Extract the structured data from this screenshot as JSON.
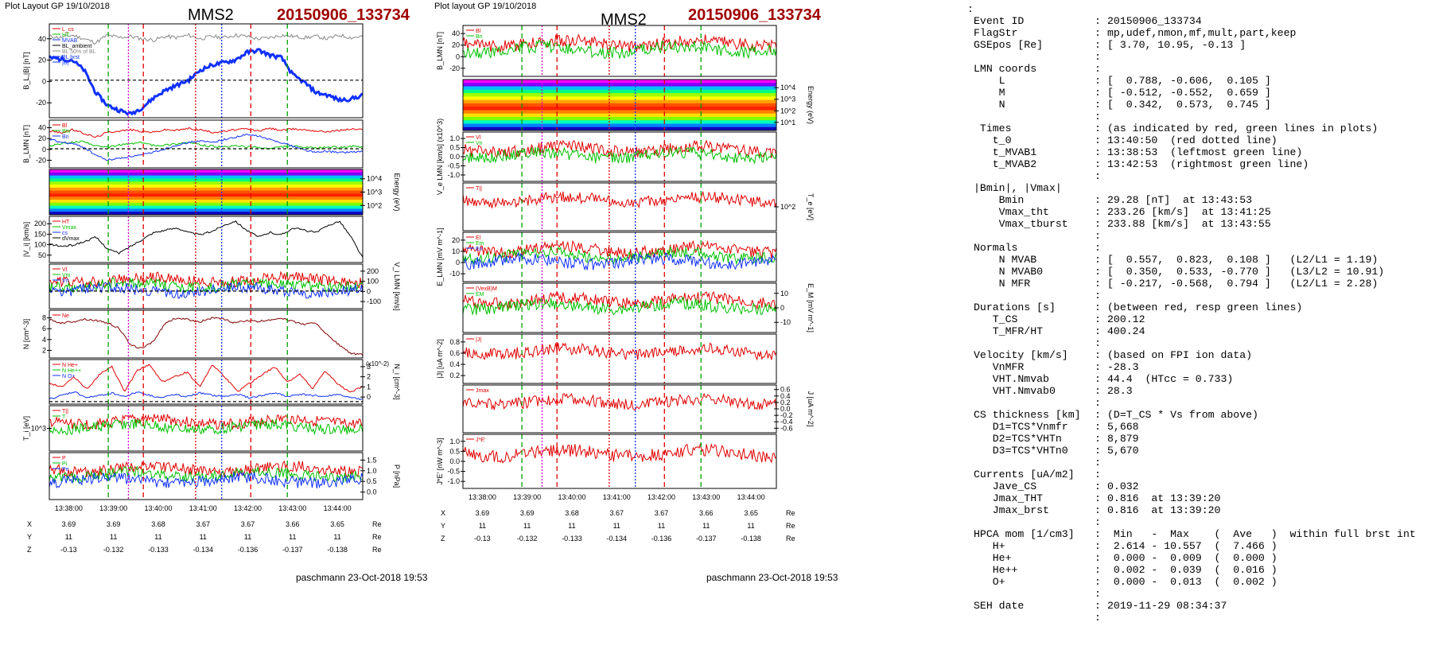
{
  "left_panel": {
    "header": "Plot Layout GP 19/10/2018",
    "spacecraft": "MMS2",
    "event": "20150906_133734",
    "footer": "paschmann 23-Oct-2018 19:53",
    "time_ticks": [
      "13:38:00",
      "13:39:00",
      "13:40:00",
      "13:41:00",
      "13:42:00",
      "13:43:00",
      "13:44:00"
    ],
    "position_rows": [
      {
        "label": "X",
        "values": [
          "3.69",
          "3.69",
          "3.68",
          "3.67",
          "3.67",
          "3.66",
          "3.65"
        ],
        "unit": "Re"
      },
      {
        "label": "Y",
        "values": [
          "11",
          "11",
          "11",
          "11",
          "11",
          "11",
          "11"
        ],
        "unit": "Re"
      },
      {
        "label": "Z",
        "values": [
          "-0.13",
          "-0.132",
          "-0.133",
          "-0.134",
          "-0.136",
          "-0.137",
          "-0.138"
        ],
        "unit": "Re"
      }
    ]
  },
  "right_panel": {
    "header": "Plot layout GP 19/10/2018",
    "spacecraft": "MMS2",
    "event": "20150906_133734",
    "footer": "paschmann 23-Oct-2018 19:53",
    "time_ticks": [
      "13:38:00",
      "13:39:00",
      "13:40:00",
      "13:41:00",
      "13:42:00",
      "13:43:00",
      "13:44:00"
    ],
    "position_rows": [
      {
        "label": "X",
        "values": [
          "3.69",
          "3.69",
          "3.68",
          "3.67",
          "3.67",
          "3.66",
          "3.65"
        ],
        "unit": "Re"
      },
      {
        "label": "Y",
        "values": [
          "11",
          "11",
          "11",
          "11",
          "11",
          "11",
          "11"
        ],
        "unit": "Re"
      },
      {
        "label": "Z",
        "values": [
          "-0.13",
          "-0.132",
          "-0.133",
          "-0.134",
          "-0.136",
          "-0.137",
          "-0.138"
        ],
        "unit": "Re"
      }
    ]
  },
  "info_lines": [
    [
      ":",
      "",
      ""
    ],
    [
      "Event ID",
      ":",
      "20150906_133734"
    ],
    [
      "FlagStr",
      ":",
      "mp,udef,nmon,mf,mult,part,keep"
    ],
    [
      "GSEpos [Re]",
      ":",
      "[ 3.70, 10.95, -0.13 ]"
    ],
    [
      "",
      ":",
      ""
    ],
    [
      "LMN coords",
      ":",
      ""
    ],
    [
      "    L",
      ":",
      "[  0.788, -0.606,  0.105 ]"
    ],
    [
      "    M",
      ":",
      "[ -0.512, -0.552,  0.659 ]"
    ],
    [
      "    N",
      ":",
      "[  0.342,  0.573,  0.745 ]"
    ],
    [
      "",
      ":",
      ""
    ],
    [
      " Times",
      ":",
      "(as indicated by red, green lines in plots)"
    ],
    [
      "   t_0",
      ":",
      "13:40:50  (red dotted line)"
    ],
    [
      "   t_MVAB1",
      ":",
      "13:38:53  (leftmost green line)"
    ],
    [
      "   t_MVAB2",
      ":",
      "13:42:53  (rightmost green line)"
    ],
    [
      "",
      ":",
      ""
    ],
    [
      "|Bmin|, |Vmax|",
      "",
      ""
    ],
    [
      "    Bmin",
      ":",
      "29.28 [nT]  at 13:43:53"
    ],
    [
      "    Vmax_tht",
      ":",
      "233.26 [km/s]  at 13:41:25"
    ],
    [
      "    Vmax_tburst",
      ":",
      "233.88 [km/s]  at 13:43:55"
    ],
    [
      "",
      ":",
      ""
    ],
    [
      "Normals",
      ":",
      ""
    ],
    [
      "    N MVAB",
      ":",
      "[  0.557,  0.823,  0.108 ]   (L2/L1 = 1.19)"
    ],
    [
      "    N MVAB0",
      ":",
      "[  0.350,  0.533, -0.770 ]   (L3/L2 = 10.91)"
    ],
    [
      "    N MFR",
      ":",
      "[ -0.217, -0.568,  0.794 ]   (L2/L1 = 2.28)"
    ],
    [
      "",
      ":",
      ""
    ],
    [
      "Durations [s]",
      ":",
      "(between red, resp green lines)"
    ],
    [
      "   T_CS",
      ":",
      "200.12"
    ],
    [
      "   T_MFR/HT",
      ":",
      "400.24"
    ],
    [
      "",
      ":",
      ""
    ],
    [
      "Velocity [km/s]",
      ":",
      "(based on FPI ion data)"
    ],
    [
      "   VnMFR",
      ":",
      "-28.3"
    ],
    [
      "   VHT.Nmvab",
      ":",
      "44.4  (HTcc = 0.733)"
    ],
    [
      "   VHT.Nmvab0",
      ":",
      "28.3"
    ],
    [
      "",
      ":",
      ""
    ],
    [
      "CS thickness [km]",
      ":",
      "(D=T_CS * Vs from above)"
    ],
    [
      "   D1=TCS*Vnmfr",
      ":",
      "5,668"
    ],
    [
      "   D2=TCS*VHTn",
      ":",
      "8,879"
    ],
    [
      "   D3=TCS*VHTn0",
      ":",
      "5,670"
    ],
    [
      "",
      ":",
      ""
    ],
    [
      "Currents [uA/m2]",
      ":",
      ""
    ],
    [
      "   Jave_CS",
      ":",
      "0.032"
    ],
    [
      "   Jmax_THT",
      ":",
      "0.816  at 13:39:20"
    ],
    [
      "   Jmax_brst",
      ":",
      "0.816  at 13:39:20"
    ],
    [
      "",
      ":",
      ""
    ],
    [
      "HPCA mom [1/cm3]",
      ":",
      " Min   -  Max    (  Ave   )  within full brst int"
    ],
    [
      "   H+",
      ":",
      " 2.614 - 10.557  (  7.466 )"
    ],
    [
      "   He+",
      ":",
      " 0.000 -  0.009  (  0.000 )"
    ],
    [
      "   He++",
      ":",
      " 0.002 -  0.039  (  0.016 )"
    ],
    [
      "   O+",
      ":",
      " 0.000 -  0.013  (  0.002 )"
    ],
    [
      "",
      ":",
      ""
    ],
    [
      "SEH date",
      ":",
      "2019-11-29 08:34:37"
    ],
    [
      "",
      ":",
      ""
    ]
  ],
  "chart_data": [
    {
      "type": "line",
      "figure": "left",
      "time_range": [
        "13:37:34",
        "13:44:34"
      ],
      "marker_lines": {
        "green_dashed": [
          "13:38:53",
          "13:42:53"
        ],
        "red_dashed": [
          "13:39:40",
          "13:42:04"
        ],
        "red_dotted": "13:40:50",
        "magenta_dotted": "13:39:20",
        "blue_dotted": "13:41:25"
      },
      "panels": [
        {
          "name": "B_L |B|",
          "ylabel": "B_L,|B| [nT]",
          "yticks": [
            "40",
            "20",
            "0",
            "-20"
          ],
          "ylim": [
            -30,
            45
          ],
          "legend": [
            "L_cs",
            "HT",
            "MVAB",
            "BL_ambient",
            "BL 50% of BL",
            "BL brst",
            "|B|"
          ],
          "series": [
            {
              "name": "|B|",
              "color": "#888888",
              "values": [
                35,
                34,
                36,
                33,
                30,
                36,
                34,
                35,
                33,
                32,
                35,
                34,
                36,
                33,
                35,
                34,
                36,
                35,
                33,
                34,
                36,
                35,
                34,
                35,
                33,
                36,
                34,
                35
              ]
            },
            {
              "name": "BL brst",
              "color": "#1030ff",
              "values": [
                18,
                17,
                16,
                8,
                -10,
                -20,
                -24,
                -27,
                -22,
                -14,
                -8,
                -4,
                0,
                8,
                12,
                14,
                16,
                22,
                24,
                20,
                18,
                4,
                -2,
                -10,
                -12,
                -16,
                -15,
                -12
              ]
            }
          ]
        },
        {
          "name": "B_LMN",
          "ylabel": "B_LMN [nT]",
          "yticks": [
            "40",
            "20",
            "0",
            "-20"
          ],
          "ylim": [
            -30,
            45
          ],
          "legend": [
            "Bl",
            "Bm",
            "Bn"
          ],
          "series": [
            {
              "name": "Bl",
              "color": "#e00000",
              "values": [
                28,
                25,
                30,
                24,
                18,
                26,
                28,
                30,
                27,
                26,
                30,
                29,
                32,
                30,
                26,
                27,
                30,
                31,
                28,
                32,
                29,
                31,
                30,
                28,
                27,
                29,
                31,
                30
              ]
            },
            {
              "name": "Bm",
              "color": "#00c000",
              "values": [
                5,
                8,
                10,
                12,
                4,
                2,
                6,
                8,
                10,
                5,
                6,
                8,
                10,
                6,
                4,
                2,
                5,
                3,
                2,
                0,
                3,
                4,
                2,
                1,
                3,
                2,
                4,
                2
              ]
            },
            {
              "name": "Bn",
              "color": "#1030ff",
              "values": [
                15,
                10,
                8,
                2,
                -10,
                -18,
                -15,
                -12,
                -10,
                -5,
                0,
                6,
                10,
                12,
                10,
                14,
                18,
                22,
                20,
                14,
                10,
                4,
                -2,
                -6,
                -4,
                -6,
                -5,
                -4
              ]
            }
          ]
        },
        {
          "name": "ion spectrogram",
          "ylabel": "Energy (eV)",
          "yticks": [
            "10^4",
            "10^3",
            "10^2"
          ]
        },
        {
          "name": "|Vi|",
          "ylabel": "|V_i| [km/s]",
          "yticks": [
            "200",
            "150",
            "100",
            "50"
          ],
          "ylim": [
            40,
            240
          ],
          "legend": [
            "HT",
            "Vmax",
            "cs",
            "dVmax"
          ],
          "series": [
            {
              "name": "|Vi|",
              "color": "#000000",
              "values": [
                120,
                110,
                115,
                130,
                150,
                100,
                80,
                110,
                140,
                170,
                180,
                190,
                170,
                160,
                175,
                200,
                220,
                180,
                150,
                170,
                160,
                190,
                180,
                170,
                200,
                220,
                150,
                60
              ]
            }
          ]
        },
        {
          "name": "Vi LMN",
          "ylabel": "V_i LMN [km/s]",
          "yticks": [
            "200",
            "100",
            "0",
            "-100"
          ],
          "ylim": [
            -150,
            230
          ],
          "legend": [
            "Vl",
            "Vm",
            "Vn"
          ]
        },
        {
          "name": "N",
          "ylabel": "N [cm^-3]",
          "yticks": [
            "8",
            "6",
            "4",
            "2"
          ],
          "ylim": [
            1.5,
            9
          ],
          "legend": [
            "Ne"
          ],
          "series": [
            {
              "name": "Ne",
              "color": "#800000",
              "values": [
                7.5,
                7,
                7.2,
                7.6,
                7.4,
                7.0,
                6.2,
                3.5,
                3.0,
                4.2,
                7.0,
                7.8,
                7.5,
                7.2,
                7.8,
                7.6,
                7.0,
                7.4,
                7.2,
                7.5,
                7.8,
                7.2,
                6.8,
                7.0,
                5.0,
                3.5,
                2.2,
                2.0
              ]
            }
          ]
        },
        {
          "name": "Ni",
          "ylabel": "N_i [cm^-3]",
          "yticks": [
            "3",
            "2",
            "1",
            "0"
          ],
          "ylim": [
            -0.2,
            3.4
          ],
          "scale_note": "(x10^-2)",
          "legend": [
            "N He+",
            "N He++",
            "N O+"
          ],
          "series": [
            {
              "name": "N He++",
              "color": "#e00000",
              "values": [
                1.5,
                1.2,
                2.0,
                1.0,
                2.2,
                2.8,
                0.8,
                2.5,
                3.0,
                1.6,
                2.0,
                2.4,
                1.2,
                3.0,
                2.0,
                0.8,
                1.5,
                2.2,
                2.8,
                1.6,
                2.2,
                1.0,
                2.5,
                1.4,
                0.8,
                1.2
              ]
            },
            {
              "name": "N O+",
              "color": "#1030ff",
              "values": [
                0.2,
                0.5,
                0.8,
                0.3,
                0.5,
                0.7,
                0.4,
                0.8,
                0.5,
                0.3,
                0.6,
                0.4,
                0.7,
                0.5,
                0.4,
                0.6,
                0.3,
                0.5,
                0.7,
                0.4,
                0.6,
                0.5,
                0.4,
                0.6,
                0.3,
                0.2
              ]
            }
          ]
        },
        {
          "name": "Ti",
          "ylabel": "T_i [eV]",
          "yticks": [
            "10^3"
          ],
          "legend": [
            "T||",
            "T"
          ]
        },
        {
          "name": "P",
          "ylabel": "P [nPa]",
          "yticks": [
            "1.5",
            "1.0",
            "0.5",
            "0.0"
          ],
          "ylim": [
            0,
            1.6
          ],
          "legend": [
            "P",
            "Pi",
            "Pe"
          ]
        }
      ]
    },
    {
      "type": "line",
      "figure": "right",
      "time_range": [
        "13:37:34",
        "13:44:34"
      ],
      "panels": [
        {
          "name": "B_LMN",
          "ylabel": "B_LMN [nT]",
          "yticks": [
            "40",
            "20",
            "0",
            "-20"
          ],
          "legend": [
            "Bl",
            "Bn"
          ]
        },
        {
          "name": "electron spectrogram",
          "ylabel": "Energy (eV)",
          "yticks": [
            "10^4",
            "10^3",
            "10^2",
            "10^1"
          ]
        },
        {
          "name": "Ve LMN",
          "ylabel": "V_e LMN [km/s] (x10^3)",
          "yticks": [
            "1.0",
            "0.5",
            "0.0",
            "-0.5",
            "-1.0"
          ],
          "legend": [
            "Vl",
            "Vn"
          ]
        },
        {
          "name": "Te",
          "ylabel": "T_e [eV]",
          "yticks": [
            "10^2"
          ],
          "legend": [
            "T||"
          ]
        },
        {
          "name": "E_LMN",
          "ylabel": "E_LMN [mV m^-1]",
          "yticks": [
            "20",
            "10",
            "0",
            "-10"
          ],
          "legend": [
            "El",
            "Em",
            "En"
          ]
        },
        {
          "name": "E_M",
          "ylabel": "E_M [mV m^-1]",
          "yticks": [
            "10",
            "0",
            "-10"
          ],
          "legend": [
            "(VexB)M",
            "EM"
          ]
        },
        {
          "name": "|J|",
          "ylabel": "|J| [uA m^-2]",
          "yticks": [
            "0.8",
            "0.6",
            "0.4",
            "0.2"
          ],
          "legend": [
            "|J|"
          ]
        },
        {
          "name": "J",
          "ylabel": "J [uA m^-2]",
          "yticks": [
            "0.6",
            "0.4",
            "0.2",
            "0.0",
            "-0.2",
            "-0.4",
            "-0.6"
          ],
          "legend": [
            "Jmax"
          ]
        },
        {
          "name": "J*E'",
          "ylabel": "J*E' [nW m^-3]",
          "yticks": [
            "1.0",
            "0.5",
            "0.0",
            "-0.5",
            "-1.0"
          ],
          "legend": [
            "J*E'"
          ]
        }
      ]
    }
  ]
}
